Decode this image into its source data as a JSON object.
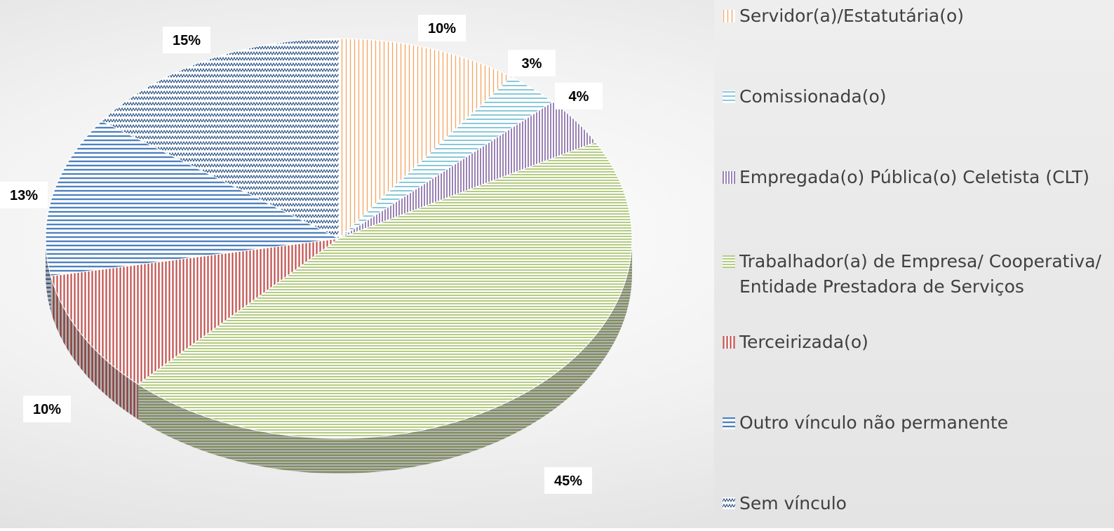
{
  "chart_data": {
    "type": "pie",
    "categories": [
      "Servidor(a)/Estatutária(o)",
      "Comissionada(o)",
      "Empregada(o) Pública(o) Celetista (CLT)",
      "Trabalhador(a) de Empresa/ Cooperativa/ Entidade Prestadora de Serviços",
      "Terceirizada(o)",
      "Outro vínculo não permanente",
      "Sem vínculo"
    ],
    "values": [
      10,
      3,
      4,
      45,
      10,
      13,
      15
    ],
    "value_labels": [
      "10%",
      "3%",
      "4%",
      "45%",
      "10%",
      "13%",
      "15%"
    ],
    "colors": [
      "#f4a460",
      "#4bacc6",
      "#8064a2",
      "#9bbb59",
      "#c0504d",
      "#4f81bd",
      "#1f497d"
    ],
    "legend": "right"
  }
}
